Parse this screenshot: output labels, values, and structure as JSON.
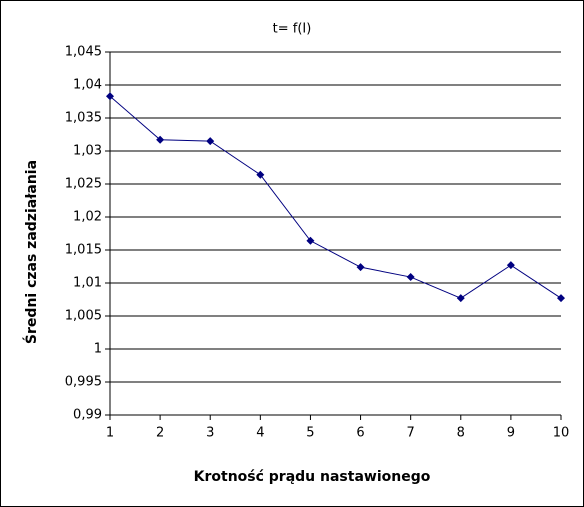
{
  "chart_data": {
    "type": "line",
    "title": "t= f(I)",
    "x_label": "Krotność prądu nastawionego",
    "y_label": "Średni czas zadziałania",
    "x": [
      1,
      2,
      3,
      4,
      5,
      6,
      7,
      8,
      9,
      10
    ],
    "series": [
      {
        "name": "t",
        "color": "#000080",
        "values": [
          1.0383,
          1.0317,
          1.0315,
          1.0264,
          1.0164,
          1.0124,
          1.0109,
          1.0077,
          1.0127,
          1.0077
        ]
      }
    ],
    "xlim": [
      1,
      10
    ],
    "xticks": [
      1,
      2,
      3,
      4,
      5,
      6,
      7,
      8,
      9,
      10
    ],
    "ylim": [
      0.99,
      1.045
    ],
    "yticks": [
      {
        "value": 0.99,
        "label": "0,99"
      },
      {
        "value": 0.995,
        "label": "0,995"
      },
      1,
      {
        "value": 1.005,
        "label": "1,005"
      },
      {
        "value": 1.01,
        "label": "1,01"
      },
      {
        "value": 1.015,
        "label": "1,015"
      },
      {
        "value": 1.02,
        "label": "1,02"
      },
      {
        "value": 1.025,
        "label": "1,025"
      },
      {
        "value": 1.03,
        "label": "1,03"
      },
      {
        "value": 1.035,
        "label": "1,035"
      },
      {
        "value": 1.04,
        "label": "1,04"
      },
      {
        "value": 1.045,
        "label": "1,045"
      }
    ],
    "grid": true
  }
}
